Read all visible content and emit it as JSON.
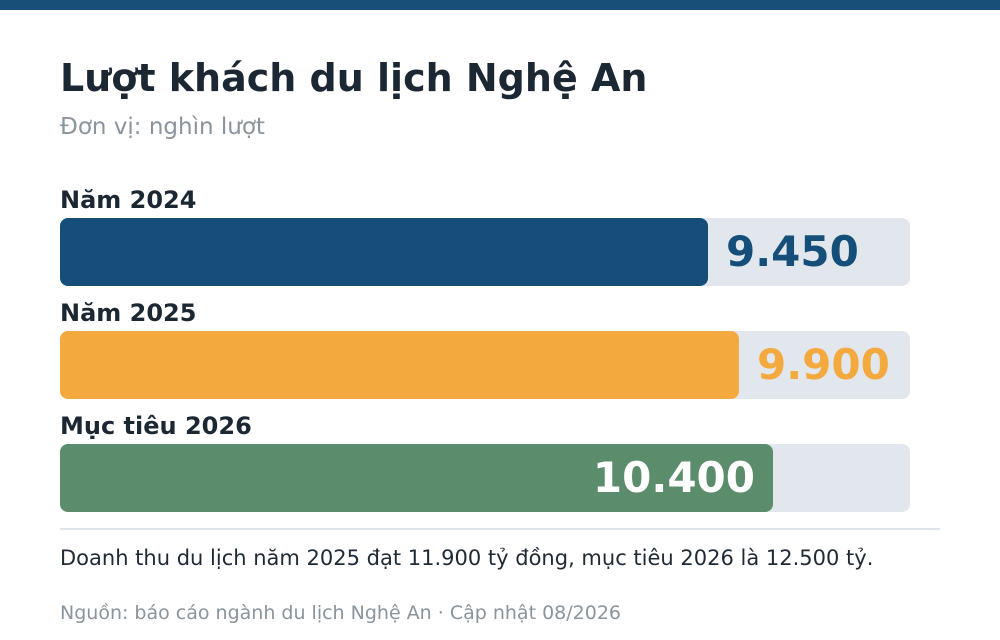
{
  "header": {
    "title": "Lượt khách du lịch Nghệ An",
    "subtitle": "Đơn vị: nghìn lượt"
  },
  "colors": {
    "topbar": "#164f78",
    "track": "#e1e7ec"
  },
  "chart_data": {
    "type": "bar",
    "orientation": "horizontal",
    "title": "Lượt khách du lịch Nghệ An",
    "subtitle": "Đơn vị: nghìn lượt",
    "categories": [
      "Năm 2024",
      "Năm 2025",
      "Mục tiêu 2026"
    ],
    "values": [
      9450,
      9900,
      10400
    ],
    "value_labels": [
      "9.450",
      "9.900",
      "10.400"
    ],
    "bar_colors": [
      "#154f79",
      "#f3a93e",
      "#5b8c6b"
    ],
    "xlim": [
      0,
      12400
    ],
    "grid": false,
    "legend": "none"
  },
  "footer": {
    "note": "Doanh thu du lịch năm 2025 đạt 11.900 tỷ đồng, mục tiêu 2026 là 12.500 tỷ.",
    "source": "Nguồn: báo cáo ngành du lịch Nghệ An · Cập nhật 08/2026"
  }
}
